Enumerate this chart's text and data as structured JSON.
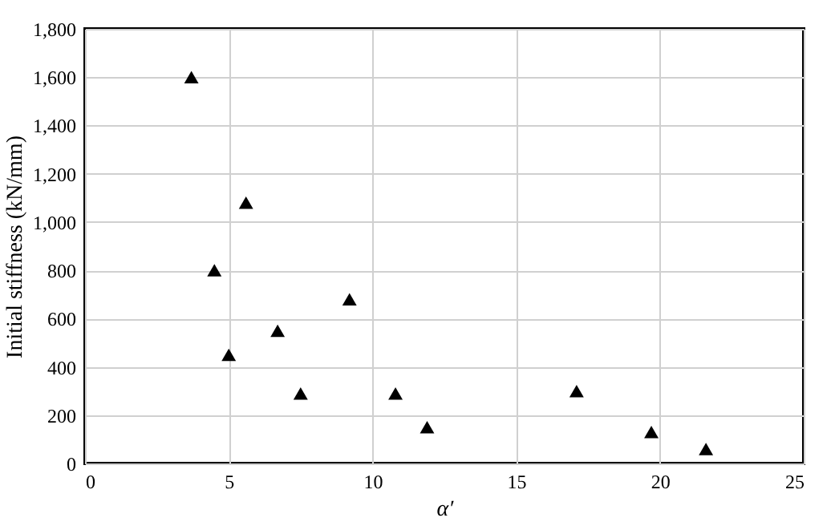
{
  "chart_data": {
    "type": "scatter",
    "xlabel": "α′",
    "ylabel": "Initial stiffness (kN/mm)",
    "x": [
      3.7,
      5.6,
      4.5,
      9.2,
      6.7,
      5.0,
      7.5,
      10.8,
      11.9,
      17.1,
      19.7,
      21.6
    ],
    "series": [
      {
        "color": "#000000",
        "values": [
          1600,
          1080,
          800,
          680,
          550,
          450,
          290,
          290,
          150,
          300,
          130,
          60
        ]
      }
    ],
    "xlim": [
      0,
      25
    ],
    "xticks": [
      0,
      5,
      10,
      15,
      20,
      25
    ],
    "ylim": [
      0,
      1800
    ],
    "yticks": [
      0,
      200,
      400,
      600,
      800,
      {
        "value": 1000,
        "label": "1,000"
      },
      {
        "value": 1200,
        "label": "1,200"
      },
      {
        "value": 1400,
        "label": "1,400"
      },
      {
        "value": 1600,
        "label": "1,600"
      },
      {
        "value": 1800,
        "label": "1,800"
      }
    ],
    "grid": true,
    "marker": "triangle"
  }
}
